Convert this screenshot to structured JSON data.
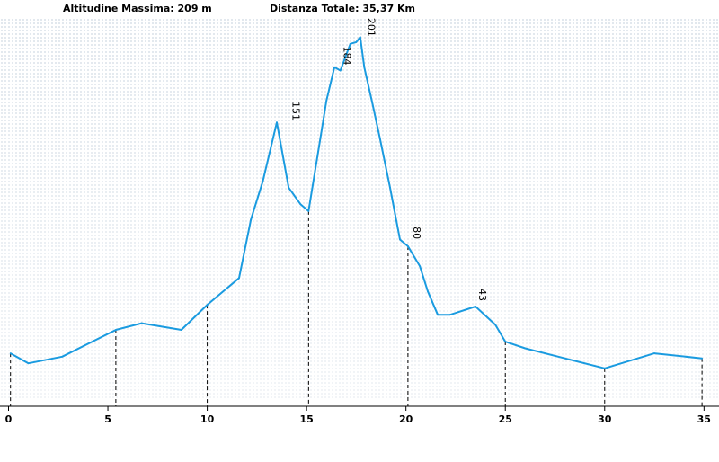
{
  "header": {
    "max_altitude_text": "Altitudine Massima: 209 m",
    "total_distance_text": "Distanza Totale: 35,37 Km"
  },
  "colors": {
    "line": "#1a9be0",
    "dots": "#e2e8ee",
    "dots_light": "#f1f4f7",
    "axis": "#000000"
  },
  "chart_data": {
    "type": "line",
    "title": "",
    "xlabel": "",
    "ylabel": "",
    "xlim": [
      0,
      35.37
    ],
    "ylim": [
      0,
      209
    ],
    "xticks": [
      0,
      5,
      10,
      15,
      20,
      25,
      30,
      35
    ],
    "xtick_labels": [
      "0",
      "5",
      "10",
      "15",
      "20",
      "25",
      "30",
      "35"
    ],
    "grid": false,
    "series": [
      {
        "x": [
          0.1,
          1.0,
          2.7,
          5.4,
          6.7,
          8.7,
          10.0,
          11.6,
          12.2,
          12.8,
          13.5,
          14.1,
          14.7,
          15.1,
          15.7,
          16.0,
          16.4,
          16.7,
          17.2,
          17.5,
          17.7,
          17.9,
          18.3,
          18.7,
          19.2,
          19.7,
          20.1,
          20.7,
          21.1,
          21.6,
          22.2,
          23.5,
          24.5,
          25.0,
          26.0,
          28.0,
          30.0,
          32.5,
          34.9
        ],
        "y": [
          15,
          9,
          13,
          29,
          33,
          29,
          44,
          60,
          95,
          118,
          153,
          114,
          104,
          100,
          144,
          166,
          186,
          184,
          200,
          201,
          204,
          186,
          165,
          143,
          114,
          83,
          79,
          67,
          52,
          38,
          38,
          43,
          32,
          22,
          18,
          12,
          6,
          15,
          12
        ]
      }
    ],
    "annotations": [
      {
        "x": 14.1,
        "y": 151,
        "text": "151"
      },
      {
        "x": 16.7,
        "y": 184,
        "text": "184"
      },
      {
        "x": 17.9,
        "y": 201,
        "text": "201"
      },
      {
        "x": 20.2,
        "y": 80,
        "text": "80"
      },
      {
        "x": 23.5,
        "y": 43,
        "text": "43"
      }
    ],
    "dashed_markers_x": [
      0.1,
      5.4,
      10.0,
      15.1,
      20.1,
      25.0,
      30.0,
      34.9
    ]
  }
}
